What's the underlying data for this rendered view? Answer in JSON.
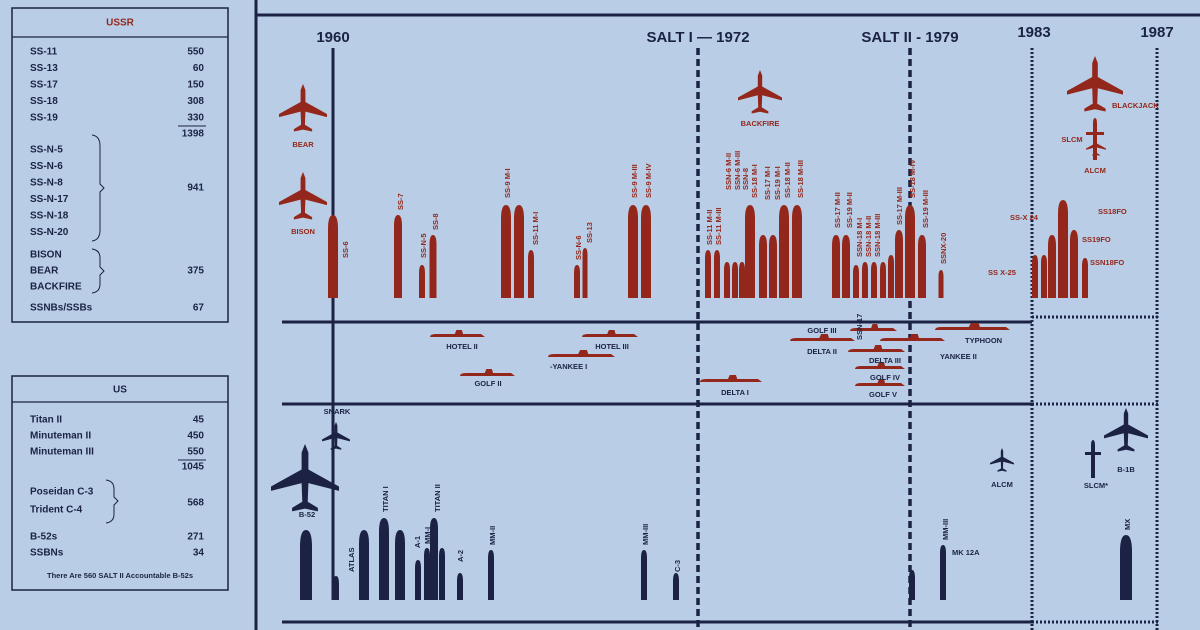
{
  "ussr": {
    "title": "USSR",
    "icbms": [
      [
        "SS-11",
        550
      ],
      [
        "SS-13",
        60
      ],
      [
        "SS-17",
        150
      ],
      [
        "SS-18",
        308
      ],
      [
        "SS-19",
        330
      ]
    ],
    "icbm_total": 1398,
    "slbms": [
      "SS-N-5",
      "SS-N-6",
      "SS-N-8",
      "SS-N-17",
      "SS-N-18",
      "SS-N-20"
    ],
    "slbm_total": 941,
    "bombers": [
      "BISON",
      "BEAR",
      "BACKFIRE"
    ],
    "bomber_total": 375,
    "ssbn": [
      "SSNBs/SSBs",
      67
    ]
  },
  "us": {
    "title": "US",
    "icbms": [
      [
        "Titan  II",
        45
      ],
      [
        "Minuteman  II",
        450
      ],
      [
        "Minuteman  III",
        550
      ]
    ],
    "icbm_total": 1045,
    "slbms": [
      "Poseidan  C-3",
      "Trident  C-4"
    ],
    "slbm_total": 568,
    "others": [
      [
        "B-52s",
        271
      ],
      [
        "SSBNs",
        34
      ]
    ],
    "note": "There  Are 560 SALT II Accountable B-52s"
  },
  "timeline": {
    "headers": [
      "1960",
      "SALT I — 1972",
      "SALT II - 1979",
      "1983",
      "1987"
    ],
    "ussr_missiles": [
      "SS-6",
      "SS-7",
      "SS-N-5",
      "SS-8",
      "SS-9 M-I",
      "SS-11 M-I",
      "SS-N-6",
      "SS-13",
      "SS-9 M-III",
      "SS-9 M-IV",
      "SS-11 M-II",
      "SS-11 M-III",
      "SSN-6 M-II",
      "SSN-6 M-III",
      "SSN-8",
      "SS-18 M-I",
      "SS-17 M-I",
      "SS-19 M-I",
      "SS-18 M-II",
      "SS-18 M-III",
      "SS-17 M-II",
      "SS-19 M-II",
      "SSN-18 M-I",
      "SSN-18 M-II",
      "SSN-18 M-III",
      "SS-17 M-III",
      "SS-18 M-IV",
      "SS-19 M-III",
      "SSNX-20"
    ],
    "ussr_aircraft": [
      "BEAR",
      "BISON",
      "BACKFIRE",
      "BLACKJACK",
      "SLCM",
      "ALCM"
    ],
    "ussr_future": [
      "SS-X 24",
      "SS18FO",
      "SS19FO",
      "SSN18FO",
      "SS X-25"
    ],
    "submarines": [
      "HOTEL II",
      "HOTEL III",
      "GOLF II",
      "-YANKEE I",
      "DELTA I",
      "GOLF III",
      "DELTA II",
      "SSN-17",
      "TYPHOON",
      "YANKEE II",
      "DELTA III",
      "GOLF IV",
      "GOLF V"
    ],
    "us_systems": [
      "SNARK",
      "B-52",
      "ATLAS",
      "TITAN I",
      "A-1",
      "MM-I",
      "TITAN II",
      "A-2",
      "MM-II",
      "MM-III",
      "C-3",
      "MM-III",
      "MK 12A",
      "ALCM",
      "SLCM*",
      "B-1B",
      "MX"
    ]
  }
}
